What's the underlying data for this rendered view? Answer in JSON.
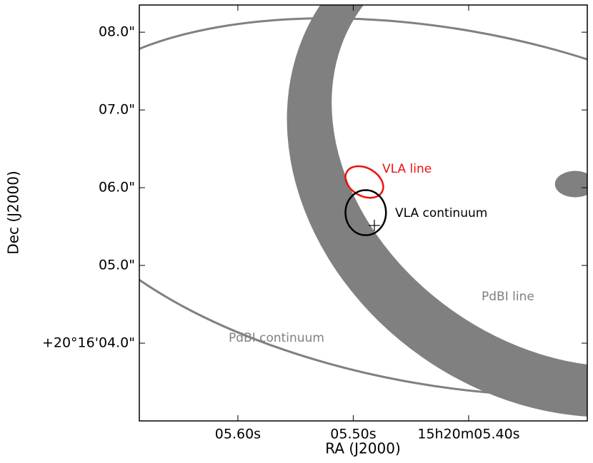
{
  "chart_data": {
    "type": "sky",
    "x_label": "RA (J2000)",
    "y_label": "Dec (J2000)",
    "xlim": [
      5.6854,
      5.2972
    ],
    "ylim": [
      3.0,
      8.35
    ],
    "xticks": [
      {
        "value": 5.6,
        "label": "05.60s"
      },
      {
        "value": 5.5,
        "label": "05.50s"
      },
      {
        "value": 5.4,
        "label": "15h20m05.40s"
      }
    ],
    "yticks": [
      {
        "value": 4.0,
        "label": "+20°16'04.0\""
      },
      {
        "value": 5.0,
        "label": "05.0\""
      },
      {
        "value": 6.0,
        "label": "06.0\""
      },
      {
        "value": 7.0,
        "label": "07.0\""
      },
      {
        "value": 8.0,
        "label": "08.0\""
      }
    ],
    "ellipses": [
      {
        "name": "PdBI line",
        "color": "#808080",
        "x": 5.3232,
        "y": 6.303,
        "a": 3.67,
        "b": 3.03,
        "angle": 35,
        "inner": {
          "x": 5.317,
          "y": 6.44,
          "a": 3.21,
          "b": 2.48,
          "angle": 35
        }
      },
      {
        "color": "#808080",
        "x": 5.3077,
        "y": 6.046,
        "a": 0.26,
        "b": 0.17,
        "angle": 0,
        "filled": true
      },
      {
        "name": "PdBI continuum",
        "color": "#808080",
        "x": 5.4223,
        "y": 5.752,
        "a": 5.14,
        "b": 2.29,
        "angle": 10
      },
      {
        "name": "VLA line",
        "color": "#ee1111",
        "x": 5.4904,
        "y": 6.073,
        "a": 0.26,
        "b": 0.18,
        "angle": 30
      },
      {
        "name": "VLA continuum",
        "color": "#000000",
        "x": 5.4892,
        "y": 5.679,
        "a": 0.26,
        "b": 0.29,
        "angle": 0
      }
    ],
    "marker": {
      "x": 5.4817,
      "y": 5.514
    }
  }
}
